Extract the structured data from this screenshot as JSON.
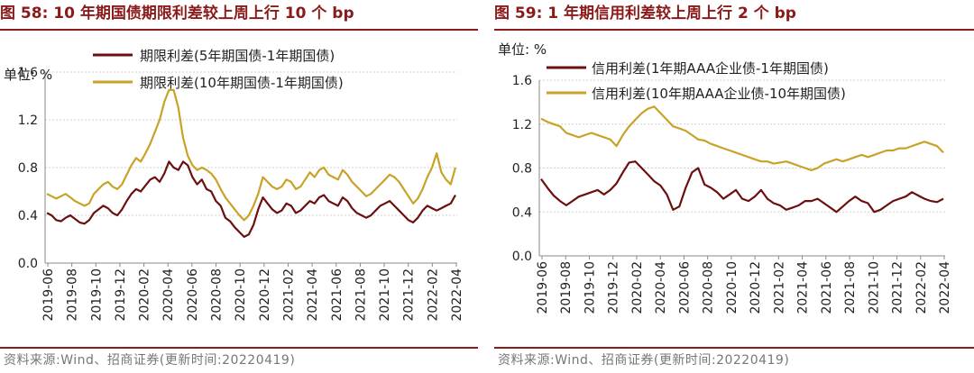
{
  "chart_data": [
    {
      "type": "line",
      "figure_label": "图 58:",
      "title": "10 年期国债期限利差较上周上行 10 个 bp",
      "unit": "单位: %",
      "ylim": [
        0,
        1.6
      ],
      "yticks": [
        "0.0",
        "0.4",
        "0.8",
        "1.2",
        "1.6"
      ],
      "x_ticks": [
        "2019-06",
        "2019-08",
        "2019-10",
        "2019-12",
        "2020-02",
        "2020-04",
        "2020-06",
        "2020-08",
        "2020-10",
        "2020-12",
        "2021-02",
        "2021-04",
        "2021-06",
        "2021-08",
        "2021-10",
        "2021-12",
        "2022-02",
        "2022-04"
      ],
      "series": [
        {
          "name": "期限利差(5年期国债-1年期国债)",
          "color": "#6b0f0f",
          "values": [
            0.42,
            0.4,
            0.36,
            0.35,
            0.38,
            0.4,
            0.37,
            0.34,
            0.33,
            0.36,
            0.42,
            0.45,
            0.48,
            0.46,
            0.42,
            0.4,
            0.45,
            0.52,
            0.58,
            0.62,
            0.6,
            0.65,
            0.7,
            0.72,
            0.68,
            0.75,
            0.85,
            0.8,
            0.78,
            0.85,
            0.82,
            0.72,
            0.66,
            0.7,
            0.62,
            0.6,
            0.52,
            0.48,
            0.38,
            0.35,
            0.3,
            0.26,
            0.22,
            0.24,
            0.32,
            0.45,
            0.55,
            0.5,
            0.45,
            0.42,
            0.44,
            0.5,
            0.48,
            0.42,
            0.44,
            0.48,
            0.52,
            0.5,
            0.55,
            0.57,
            0.52,
            0.5,
            0.48,
            0.55,
            0.52,
            0.46,
            0.42,
            0.4,
            0.38,
            0.4,
            0.44,
            0.48,
            0.5,
            0.52,
            0.48,
            0.44,
            0.4,
            0.36,
            0.34,
            0.38,
            0.44,
            0.48,
            0.46,
            0.44,
            0.46,
            0.48,
            0.5,
            0.57
          ]
        },
        {
          "name": "期限利差(10年期国债-1年期国债)",
          "color": "#c9a227",
          "values": [
            0.58,
            0.56,
            0.54,
            0.56,
            0.58,
            0.55,
            0.52,
            0.5,
            0.48,
            0.5,
            0.58,
            0.62,
            0.66,
            0.68,
            0.64,
            0.62,
            0.66,
            0.74,
            0.82,
            0.88,
            0.85,
            0.92,
            1.0,
            1.1,
            1.2,
            1.35,
            1.45,
            1.45,
            1.3,
            1.05,
            0.9,
            0.82,
            0.78,
            0.8,
            0.78,
            0.75,
            0.7,
            0.62,
            0.55,
            0.5,
            0.45,
            0.4,
            0.36,
            0.4,
            0.48,
            0.58,
            0.72,
            0.68,
            0.64,
            0.62,
            0.64,
            0.7,
            0.68,
            0.62,
            0.64,
            0.7,
            0.76,
            0.72,
            0.78,
            0.8,
            0.74,
            0.72,
            0.7,
            0.78,
            0.74,
            0.68,
            0.64,
            0.6,
            0.56,
            0.58,
            0.62,
            0.66,
            0.7,
            0.74,
            0.72,
            0.68,
            0.62,
            0.56,
            0.5,
            0.54,
            0.62,
            0.72,
            0.8,
            0.92,
            0.76,
            0.7,
            0.66,
            0.8
          ]
        }
      ]
    },
    {
      "type": "line",
      "figure_label": "图 59:",
      "title": "1 年期信用利差较上周上行 2 个 bp",
      "unit": "单位: %",
      "ylim": [
        0,
        1.6
      ],
      "yticks": [
        "0.0",
        "0.4",
        "0.8",
        "1.2",
        "1.6"
      ],
      "x_ticks": [
        "2019-06",
        "2019-08",
        "2019-10",
        "2019-12",
        "2020-02",
        "2020-04",
        "2020-06",
        "2020-08",
        "2020-10",
        "2020-12",
        "2021-02",
        "2021-04",
        "2021-06",
        "2021-08",
        "2021-10",
        "2021-12",
        "2022-02",
        "2022-04"
      ],
      "series": [
        {
          "name": "信用利差(1年期AAA企业债-1年期国债)",
          "color": "#6b0f0f",
          "values": [
            0.7,
            0.62,
            0.55,
            0.5,
            0.46,
            0.5,
            0.54,
            0.56,
            0.58,
            0.6,
            0.56,
            0.6,
            0.66,
            0.76,
            0.85,
            0.86,
            0.8,
            0.74,
            0.68,
            0.64,
            0.56,
            0.42,
            0.45,
            0.62,
            0.76,
            0.8,
            0.65,
            0.62,
            0.58,
            0.52,
            0.56,
            0.6,
            0.52,
            0.5,
            0.54,
            0.6,
            0.52,
            0.48,
            0.46,
            0.42,
            0.44,
            0.46,
            0.5,
            0.5,
            0.52,
            0.48,
            0.44,
            0.4,
            0.45,
            0.5,
            0.54,
            0.5,
            0.48,
            0.4,
            0.42,
            0.46,
            0.5,
            0.52,
            0.54,
            0.58,
            0.55,
            0.52,
            0.5,
            0.49,
            0.52
          ]
        },
        {
          "name": "信用利差(10年期AAA企业债-10年期国债)",
          "color": "#c9a227",
          "values": [
            1.25,
            1.22,
            1.2,
            1.18,
            1.12,
            1.1,
            1.08,
            1.1,
            1.12,
            1.1,
            1.08,
            1.06,
            1.0,
            1.1,
            1.18,
            1.24,
            1.3,
            1.34,
            1.36,
            1.3,
            1.24,
            1.18,
            1.16,
            1.14,
            1.1,
            1.06,
            1.05,
            1.02,
            1.0,
            0.98,
            0.96,
            0.94,
            0.92,
            0.9,
            0.88,
            0.86,
            0.86,
            0.84,
            0.85,
            0.86,
            0.84,
            0.82,
            0.8,
            0.78,
            0.8,
            0.84,
            0.86,
            0.88,
            0.86,
            0.88,
            0.9,
            0.92,
            0.9,
            0.92,
            0.94,
            0.96,
            0.96,
            0.98,
            0.98,
            1.0,
            1.02,
            1.04,
            1.02,
            1.0,
            0.94
          ]
        }
      ]
    }
  ],
  "source_text": "资料来源:Wind、招商证券(更新时间:20220419)"
}
